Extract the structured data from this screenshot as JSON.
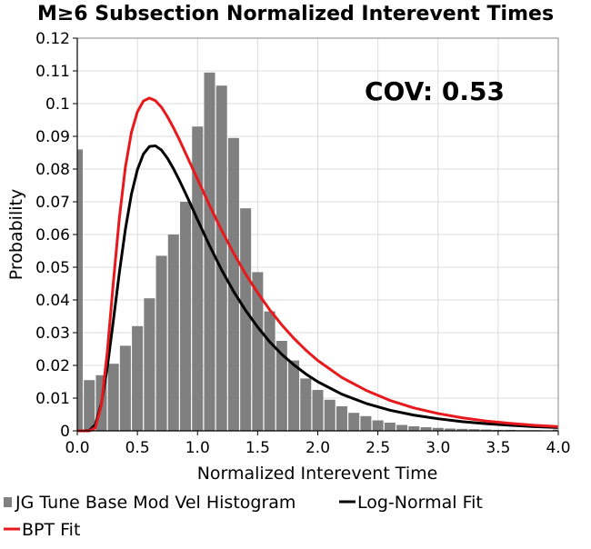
{
  "chart_data": {
    "type": "bar",
    "title": "M≥6 Subsection Normalized Interevent Times",
    "xlabel": "Normalized Interevent Time",
    "ylabel": "Probability",
    "xlim": [
      0.0,
      4.0
    ],
    "ylim": [
      0.0,
      0.12
    ],
    "x_ticks": [
      "0.0",
      "0.5",
      "1.0",
      "1.5",
      "2.0",
      "2.5",
      "3.0",
      "3.5",
      "4.0"
    ],
    "y_ticks": [
      "0",
      "0.01",
      "0.02",
      "0.03",
      "0.04",
      "0.05",
      "0.06",
      "0.07",
      "0.08",
      "0.09",
      "0.1",
      "0.11",
      "0.12"
    ],
    "grid": true,
    "annotation": "COV: 0.53",
    "bin_width": 0.1,
    "histogram": {
      "name": "JG Tune Base Mod Vel Histogram",
      "color": "#808080",
      "bin_centers": [
        0.0,
        0.1,
        0.2,
        0.3,
        0.4,
        0.5,
        0.6,
        0.7,
        0.8,
        0.9,
        1.0,
        1.1,
        1.2,
        1.3,
        1.4,
        1.5,
        1.6,
        1.7,
        1.8,
        1.9,
        2.0,
        2.1,
        2.2,
        2.3,
        2.4,
        2.5,
        2.6,
        2.7,
        2.8,
        2.9,
        3.0,
        3.1,
        3.2,
        3.3,
        3.4,
        3.5,
        3.6,
        3.7,
        3.8,
        3.9,
        4.0
      ],
      "values": [
        0.086,
        0.0155,
        0.017,
        0.0205,
        0.026,
        0.032,
        0.0405,
        0.0535,
        0.06,
        0.07,
        0.093,
        0.1095,
        0.1055,
        0.0895,
        0.068,
        0.0485,
        0.0365,
        0.0275,
        0.0215,
        0.016,
        0.0125,
        0.0095,
        0.0075,
        0.0055,
        0.0045,
        0.0032,
        0.0025,
        0.0018,
        0.0014,
        0.0011,
        0.0009,
        0.0007,
        0.0006,
        0.0005,
        0.0004,
        0.0003,
        0.0003,
        0.0002,
        0.0002,
        0.0001,
        0.0004
      ]
    },
    "series": [
      {
        "name": "Log-Normal Fit",
        "type": "line",
        "color": "#000000",
        "x": [
          0.0,
          0.05,
          0.1,
          0.15,
          0.2,
          0.25,
          0.3,
          0.35,
          0.4,
          0.45,
          0.5,
          0.55,
          0.6,
          0.65,
          0.7,
          0.75,
          0.8,
          0.85,
          0.9,
          0.95,
          1.0,
          1.1,
          1.2,
          1.3,
          1.4,
          1.5,
          1.6,
          1.7,
          1.8,
          1.9,
          2.0,
          2.2,
          2.4,
          2.6,
          2.8,
          3.0,
          3.2,
          3.4,
          3.6,
          3.8,
          4.0
        ],
        "y": [
          0.0,
          0.0,
          0.0001,
          0.0019,
          0.0083,
          0.0195,
          0.0337,
          0.0484,
          0.0616,
          0.0723,
          0.0798,
          0.0846,
          0.0869,
          0.0871,
          0.0858,
          0.0833,
          0.0801,
          0.0765,
          0.0726,
          0.0686,
          0.0645,
          0.0566,
          0.0492,
          0.0426,
          0.0368,
          0.0317,
          0.0272,
          0.0234,
          0.0202,
          0.0174,
          0.015,
          0.0112,
          0.0084,
          0.0063,
          0.0048,
          0.0037,
          0.0028,
          0.0022,
          0.0017,
          0.0013,
          0.001
        ]
      },
      {
        "name": "BPT Fit",
        "type": "line",
        "color": "#e8191c",
        "x": [
          0.0,
          0.05,
          0.1,
          0.15,
          0.2,
          0.25,
          0.3,
          0.35,
          0.4,
          0.45,
          0.5,
          0.55,
          0.6,
          0.65,
          0.7,
          0.75,
          0.8,
          0.85,
          0.9,
          0.95,
          1.0,
          1.1,
          1.2,
          1.3,
          1.4,
          1.5,
          1.6,
          1.7,
          1.8,
          1.9,
          2.0,
          2.2,
          2.4,
          2.6,
          2.8,
          3.0,
          3.2,
          3.4,
          3.6,
          3.8,
          4.0
        ],
        "y": [
          0.0,
          0.0,
          0.0,
          0.0009,
          0.0078,
          0.0243,
          0.0454,
          0.0651,
          0.0806,
          0.0912,
          0.0975,
          0.1008,
          0.1017,
          0.1009,
          0.0989,
          0.096,
          0.0926,
          0.0889,
          0.0849,
          0.0809,
          0.0769,
          0.0689,
          0.0613,
          0.0543,
          0.0479,
          0.0422,
          0.037,
          0.0324,
          0.0283,
          0.0247,
          0.0215,
          0.0163,
          0.0124,
          0.0093,
          0.007,
          0.0053,
          0.004,
          0.003,
          0.0023,
          0.0017,
          0.0013
        ]
      }
    ],
    "legend": {
      "placement": "bottom",
      "entries": [
        {
          "label": "JG Tune Base Mod Vel Histogram",
          "marker": "square",
          "color": "#808080"
        },
        {
          "label": "Log-Normal Fit",
          "marker": "line",
          "color": "#000000"
        },
        {
          "label": "BPT Fit",
          "marker": "line",
          "color": "#e8191c"
        }
      ]
    }
  }
}
